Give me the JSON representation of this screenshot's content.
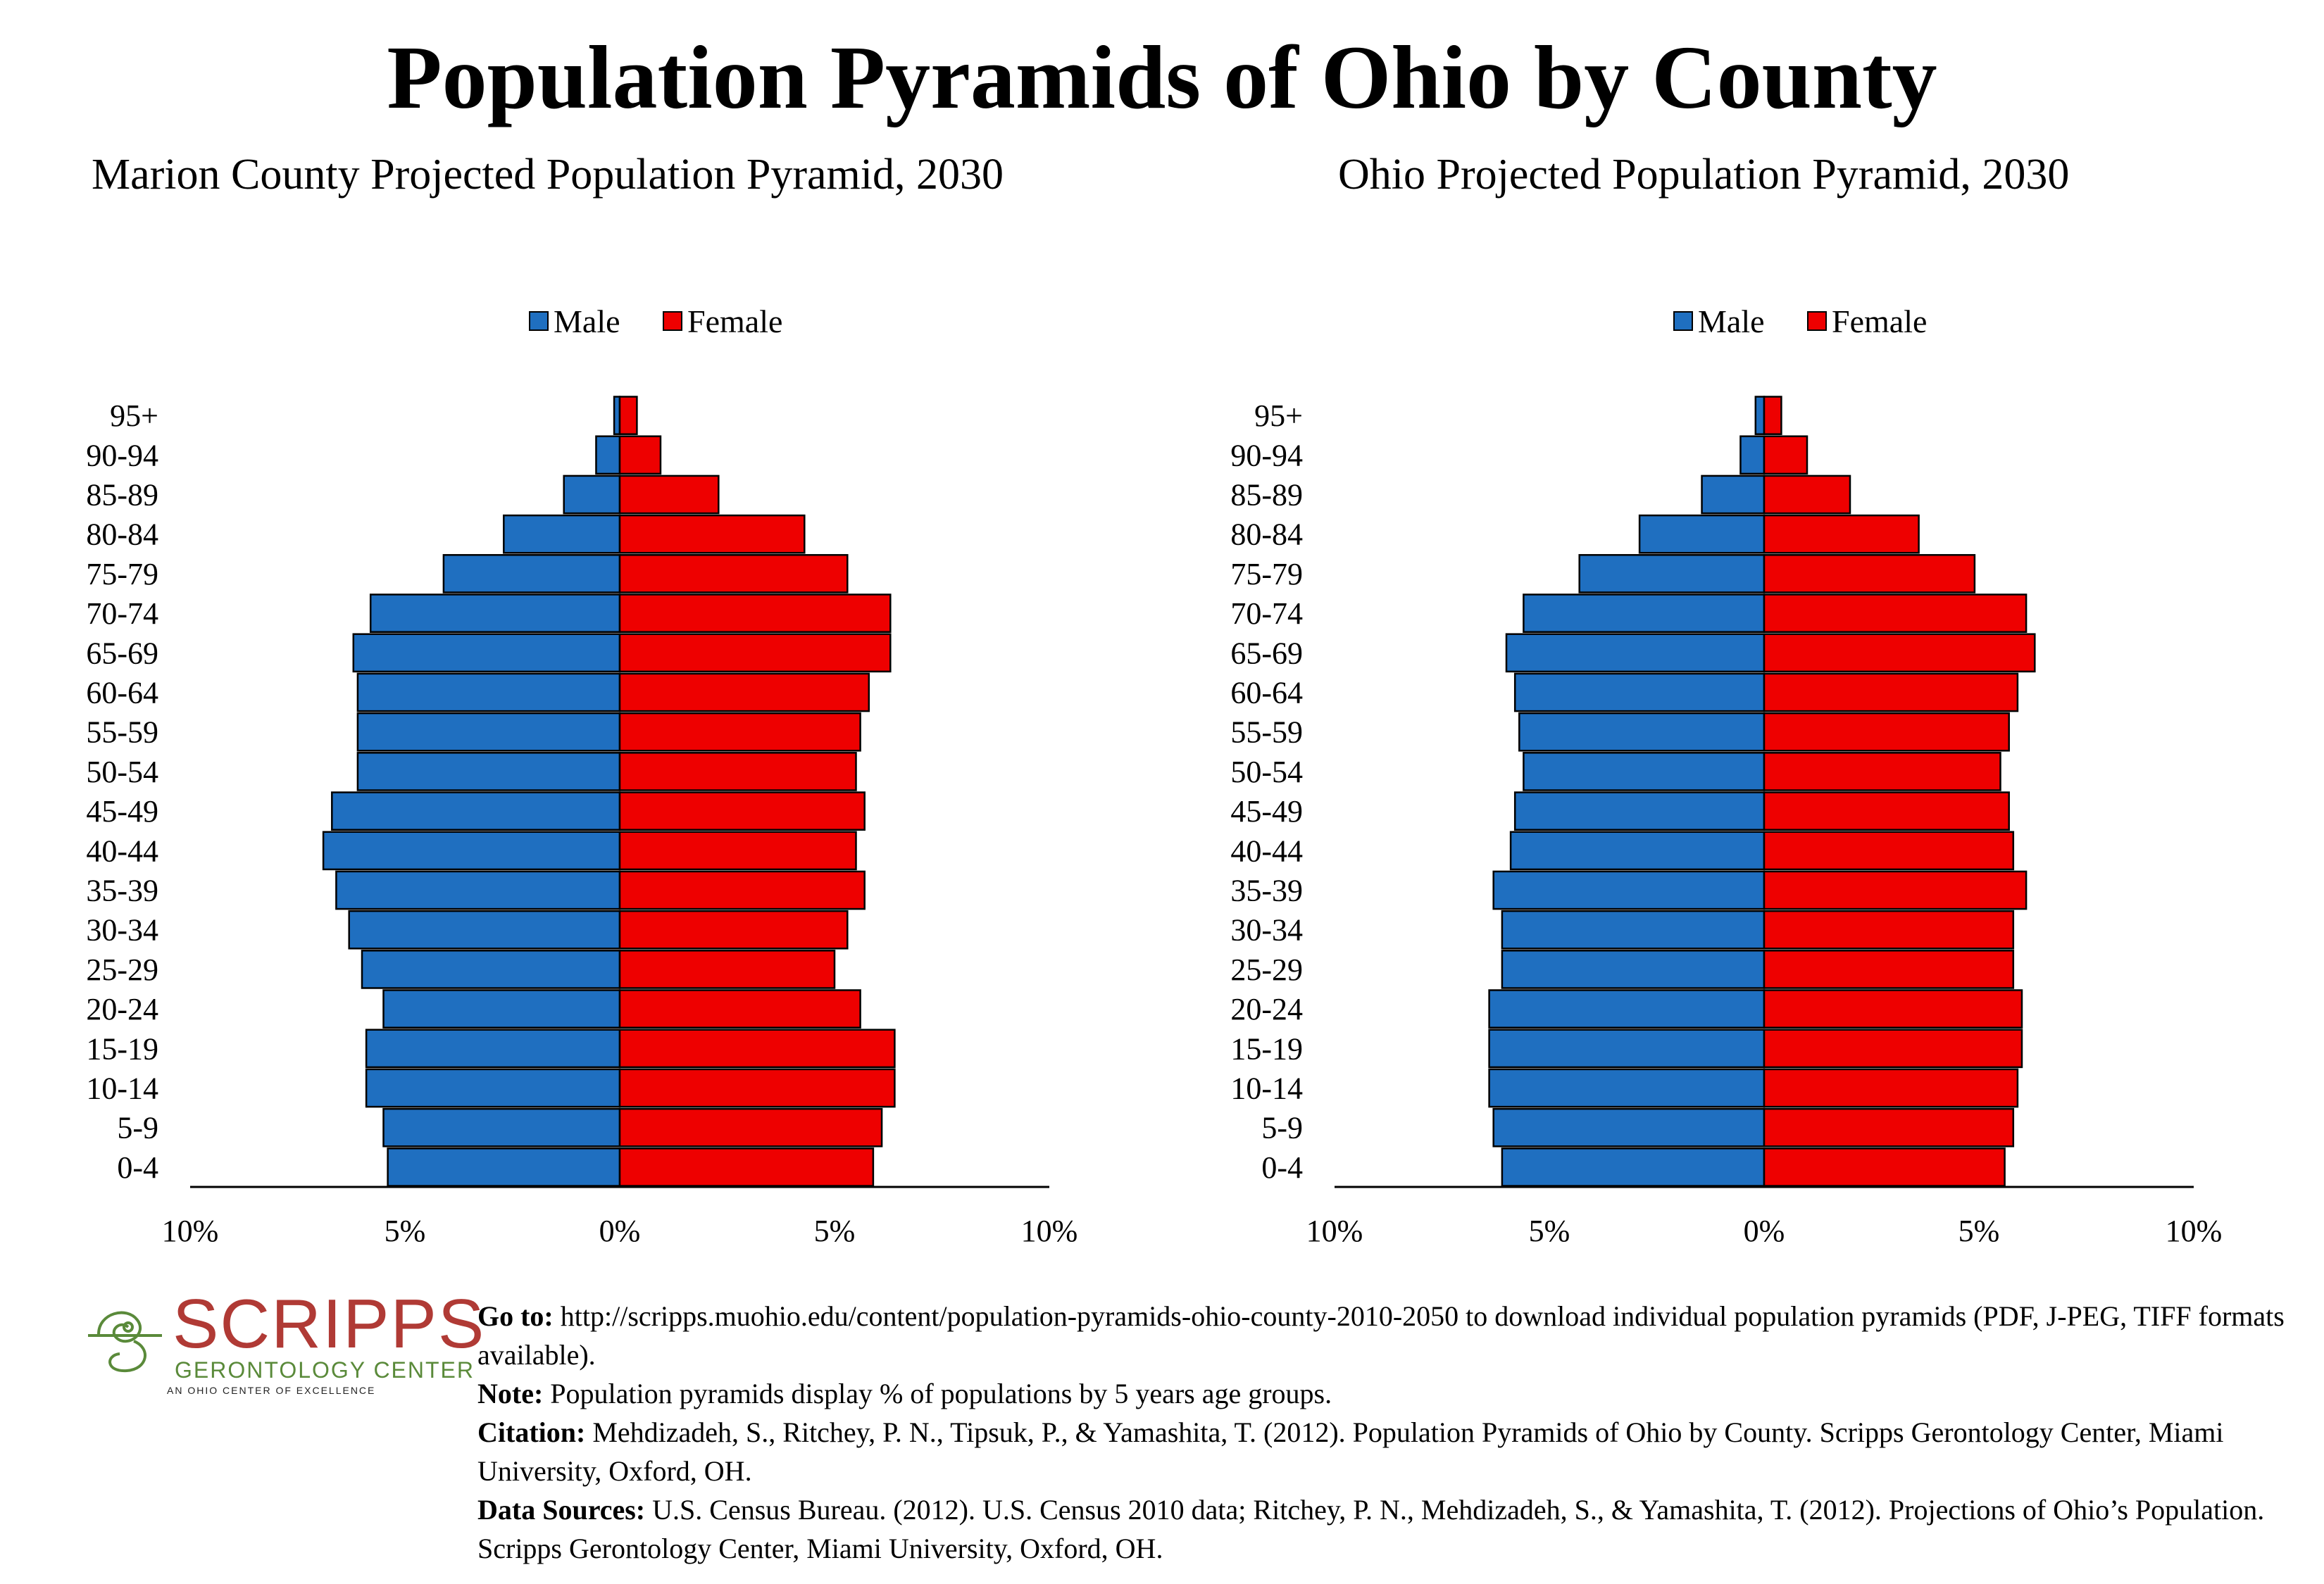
{
  "title": "Population Pyramids of Ohio by County",
  "colors": {
    "male": "#1f6fc0",
    "female": "#ee0000"
  },
  "legend": {
    "male": "Male",
    "female": "Female"
  },
  "chart_data": [
    {
      "type": "bar",
      "title": "Marion County Projected Population Pyramid, 2030",
      "categories": [
        "0-4",
        "5-9",
        "10-14",
        "15-19",
        "20-24",
        "25-29",
        "30-34",
        "35-39",
        "40-44",
        "45-49",
        "50-54",
        "55-59",
        "60-64",
        "65-69",
        "70-74",
        "75-79",
        "80-84",
        "85-89",
        "90-94",
        "95+"
      ],
      "series": [
        {
          "name": "Male",
          "values": [
            5.4,
            5.5,
            5.9,
            5.9,
            5.5,
            6.0,
            6.3,
            6.6,
            6.9,
            6.7,
            6.1,
            6.1,
            6.1,
            6.2,
            5.8,
            4.1,
            2.7,
            1.3,
            0.55,
            0.13
          ]
        },
        {
          "name": "Female",
          "values": [
            5.9,
            6.1,
            6.4,
            6.4,
            5.6,
            5.0,
            5.3,
            5.7,
            5.5,
            5.7,
            5.5,
            5.6,
            5.8,
            6.3,
            6.3,
            5.3,
            4.3,
            2.3,
            0.95,
            0.4
          ]
        }
      ],
      "xlim": [
        -10,
        10
      ],
      "xtick_labels": [
        "10%",
        "5%",
        "0%",
        "5%",
        "10%"
      ],
      "legend": "top-center",
      "grid": false
    },
    {
      "type": "bar",
      "title": "Ohio Projected Population Pyramid, 2030",
      "categories": [
        "0-4",
        "5-9",
        "10-14",
        "15-19",
        "20-24",
        "25-29",
        "30-34",
        "35-39",
        "40-44",
        "45-49",
        "50-54",
        "55-59",
        "60-64",
        "65-69",
        "70-74",
        "75-79",
        "80-84",
        "85-89",
        "90-94",
        "95+"
      ],
      "series": [
        {
          "name": "Male",
          "values": [
            6.1,
            6.3,
            6.4,
            6.4,
            6.4,
            6.1,
            6.1,
            6.3,
            5.9,
            5.8,
            5.6,
            5.7,
            5.8,
            6.0,
            5.6,
            4.3,
            2.9,
            1.45,
            0.55,
            0.2
          ]
        },
        {
          "name": "Female",
          "values": [
            5.6,
            5.8,
            5.9,
            6.0,
            6.0,
            5.8,
            5.8,
            6.1,
            5.8,
            5.7,
            5.5,
            5.7,
            5.9,
            6.3,
            6.1,
            4.9,
            3.6,
            2.0,
            1.0,
            0.4
          ]
        }
      ],
      "xlim": [
        -10,
        10
      ],
      "xtick_labels": [
        "10%",
        "5%",
        "0%",
        "5%",
        "10%"
      ],
      "legend": "top-center",
      "grid": false
    }
  ],
  "logo": {
    "name": "SCRIPPS",
    "subtitle": "GERONTOLOGY CENTER",
    "tagline": "AN OHIO CENTER OF EXCELLENCE",
    "colors": {
      "name": "#b03a35",
      "subtitle": "#5a8a3a"
    }
  },
  "notes": [
    {
      "label": "Go to:",
      "text": " http://scripps.muohio.edu/content/population-pyramids-ohio-county-2010-2050 to download individual population pyramids (PDF, J-PEG, TIFF formats available)."
    },
    {
      "label": "Note:",
      "text": " Population pyramids display % of populations by 5 years age groups."
    },
    {
      "label": "Citation:",
      "text": " Mehdizadeh, S., Ritchey, P. N., Tipsuk, P., & Yamashita, T. (2012). Population Pyramids of Ohio by County. Scripps Gerontology Center, Miami University, Oxford, OH."
    },
    {
      "label": "Data Sources:",
      "text": " U.S. Census Bureau. (2012). U.S. Census 2010 data; Ritchey, P. N., Mehdizadeh, S., & Yamashita, T. (2012). Projections of Ohio’s Population. Scripps Gerontology Center, Miami University, Oxford, OH."
    }
  ]
}
